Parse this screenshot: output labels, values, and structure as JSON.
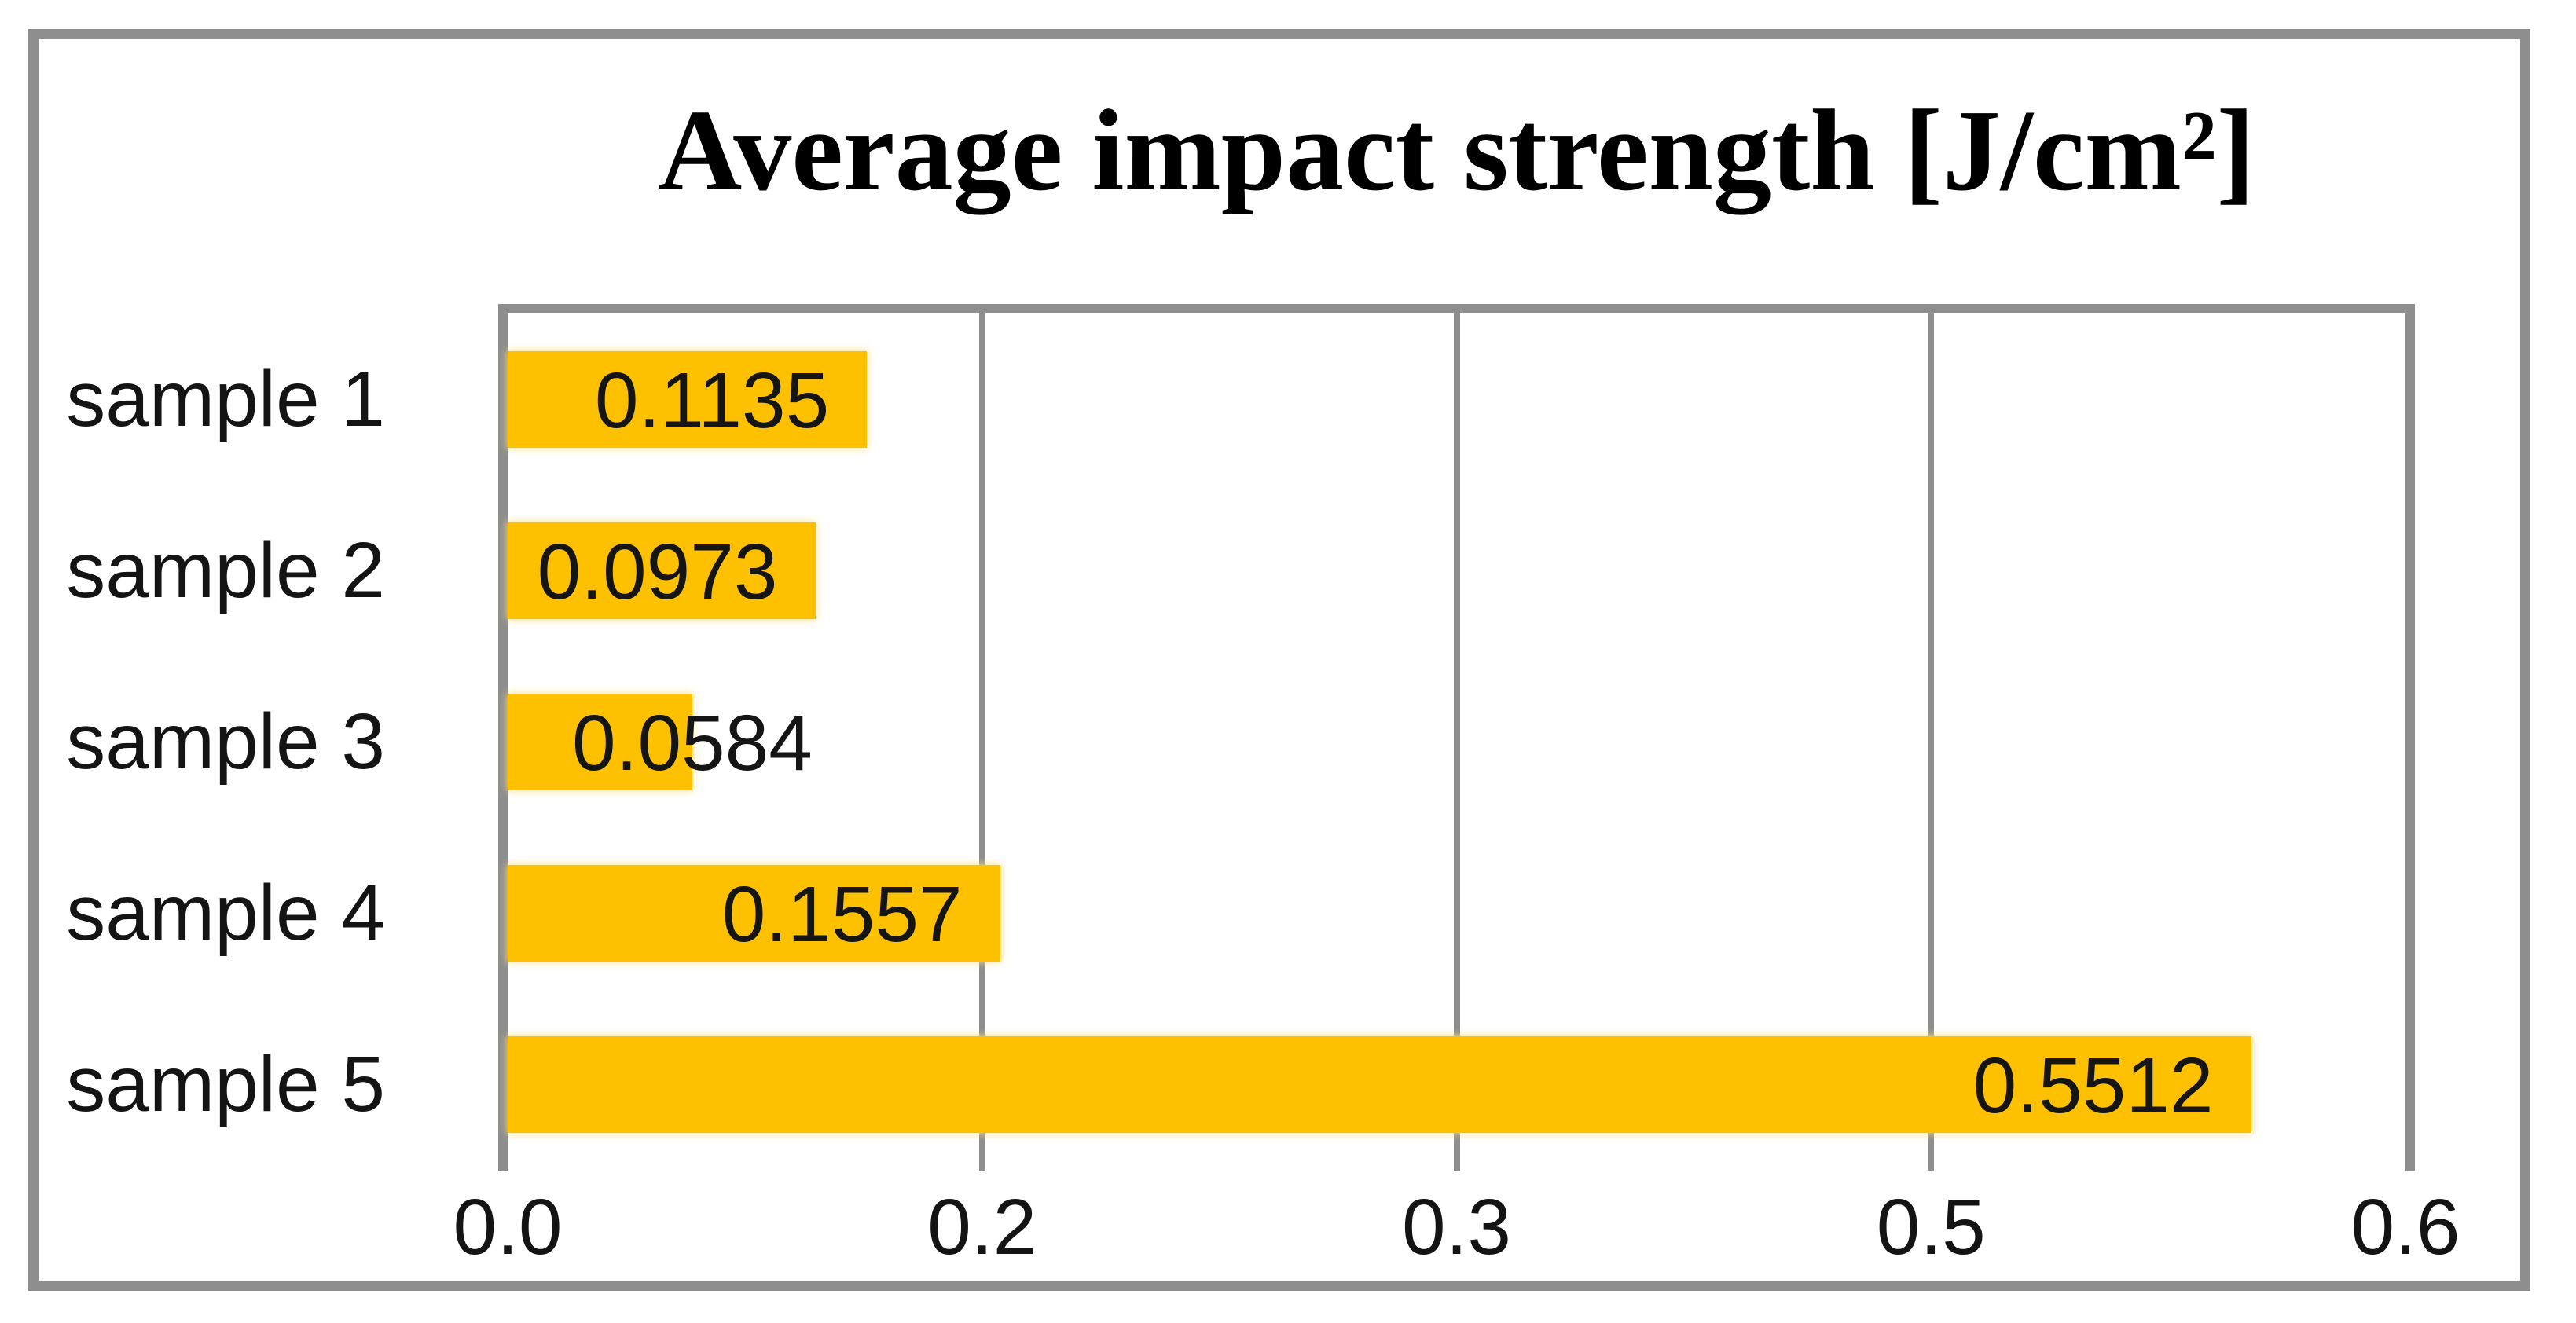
{
  "figure": {
    "background": "#FFFFFF",
    "border_color": "#8E8E8E"
  },
  "chart_data": {
    "type": "bar",
    "orientation": "horizontal",
    "title": "Average impact strength [J/cm²]",
    "categories": [
      "sample 1",
      "sample 2",
      "sample 3",
      "sample 4",
      "sample 5"
    ],
    "values": [
      0.1135,
      0.0973,
      0.0584,
      0.1557,
      0.5512
    ],
    "value_labels": [
      "0.1135",
      "0.0973",
      "0.0584",
      "0.1557",
      "0.5512"
    ],
    "x_tick_labels": [
      "0.0",
      "0.2",
      "0.3",
      "0.5",
      "0.6"
    ],
    "xlim": [
      0,
      0.6
    ],
    "grid": "vertical-only",
    "legend": "none",
    "data_label_position": "inside-end",
    "bar_color": "#FDC101",
    "grid_color": "#8E8E8E",
    "text_color": "#141414",
    "title_color": "#000000"
  }
}
